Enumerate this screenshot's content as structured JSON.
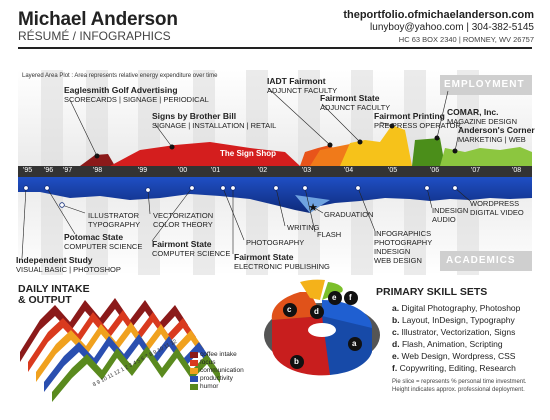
{
  "header": {
    "name": "Michael Anderson",
    "subtitle": "RÉSUMÉ / INFOGRAPHICS",
    "url": "theportfolio.ofmichaelanderson.com",
    "email_phone": "lunyboy@yahoo.com | 304-382-5145",
    "address": "HC 63 BOX 2340 | ROMNEY, WV 26757"
  },
  "timeline": {
    "note": "Layered Area Plot : Area represents relative energy expenditure over time",
    "years": [
      "'95",
      "'96",
      "'97",
      "'98",
      "'99",
      "'00",
      "'01",
      "'02",
      "'03",
      "'04",
      "'05",
      "'06",
      "'07",
      "'08"
    ],
    "employment_label": "EMPLOYMENT",
    "academics_label": "ACADEMICS",
    "sign_shop": "The Sign Shop",
    "employment": [
      {
        "title": "Eaglesmith Golf Advertising",
        "detail": "SCORECARDS | SIGNAGE | PERIODICAL"
      },
      {
        "title": "Signs by Brother Bill",
        "detail": "SIGNAGE | INSTALLATION | RETAIL"
      },
      {
        "title": "IADT Fairmont",
        "detail": "ADJUNCT FACULTY"
      },
      {
        "title": "Fairmont State",
        "detail": "ADJUNCT FACULTY"
      },
      {
        "title": "Fairmont Printing",
        "detail": "PRE-PRESS OPERATOR"
      },
      {
        "title": "COMAR, Inc.",
        "detail": "MAGAZINE DESIGN"
      },
      {
        "title": "Anderson's Corner",
        "detail": "MARKETING | WEB"
      }
    ],
    "academics": [
      {
        "title": "",
        "detail": "ILLUSTRATOR\nTYPOGRAPHY"
      },
      {
        "title": "Potomac State",
        "detail": "COMPUTER SCIENCE"
      },
      {
        "title": "Independent Study",
        "detail": "VISUAL BASIC | PHOTOSHOP"
      },
      {
        "title": "",
        "detail": "VECTORIZATION\nCOLOR THEORY"
      },
      {
        "title": "Fairmont State",
        "detail": "COMPUTER SCIENCE"
      },
      {
        "title": "",
        "detail": "PHOTOGRAPHY"
      },
      {
        "title": "Fairmont State",
        "detail": "ELECTRONIC PUBLISHING"
      },
      {
        "title": "",
        "detail": "WRITING"
      },
      {
        "title": "",
        "detail": "FLASH"
      },
      {
        "title": "",
        "detail": "GRADUATION"
      },
      {
        "title": "",
        "detail": "INFOGRAPHICS\nPHOTOGRAPHY\nINDESIGN\nWEB DESIGN"
      },
      {
        "title": "",
        "detail": "INDESIGN\nAUDIO"
      },
      {
        "title": "",
        "detail": "WORDPRESS\nDIGITAL VIDEO"
      }
    ]
  },
  "daily": {
    "title": "DAILY INTAKE\n& OUTPUT",
    "legend": [
      {
        "label": "coffee intake",
        "color": "#8b1a1a"
      },
      {
        "label": "focus",
        "color": "#d93a1e"
      },
      {
        "label": "communication",
        "color": "#f0a11e"
      },
      {
        "label": "productivity",
        "color": "#2a4fb0"
      },
      {
        "label": "humor",
        "color": "#5a8a1e"
      }
    ],
    "axis_hours": [
      "8",
      "9",
      "10",
      "11",
      "12",
      "1",
      "2",
      "3",
      "4",
      "5",
      "6",
      "7",
      "8",
      "9",
      "10",
      "11",
      "12"
    ]
  },
  "skills": {
    "title": "PRIMARY SKILL SETS",
    "items": [
      {
        "letter": "a.",
        "text": "Digital Photography, Photoshop"
      },
      {
        "letter": "b.",
        "text": "Layout, InDesign, Typography"
      },
      {
        "letter": "c.",
        "text": "Illustrator, Vectorization, Signs"
      },
      {
        "letter": "d.",
        "text": "Flash, Animation, Scripting"
      },
      {
        "letter": "e.",
        "text": "Web Design, Wordpress, CSS"
      },
      {
        "letter": "f.",
        "text": "Copywriting, Editing, Research"
      }
    ],
    "note": "Pie slice = represents % personal time investment.\nHeight indicates approx. professional deployment.",
    "pie_letters": [
      "a",
      "b",
      "c",
      "d",
      "e",
      "f"
    ]
  }
}
